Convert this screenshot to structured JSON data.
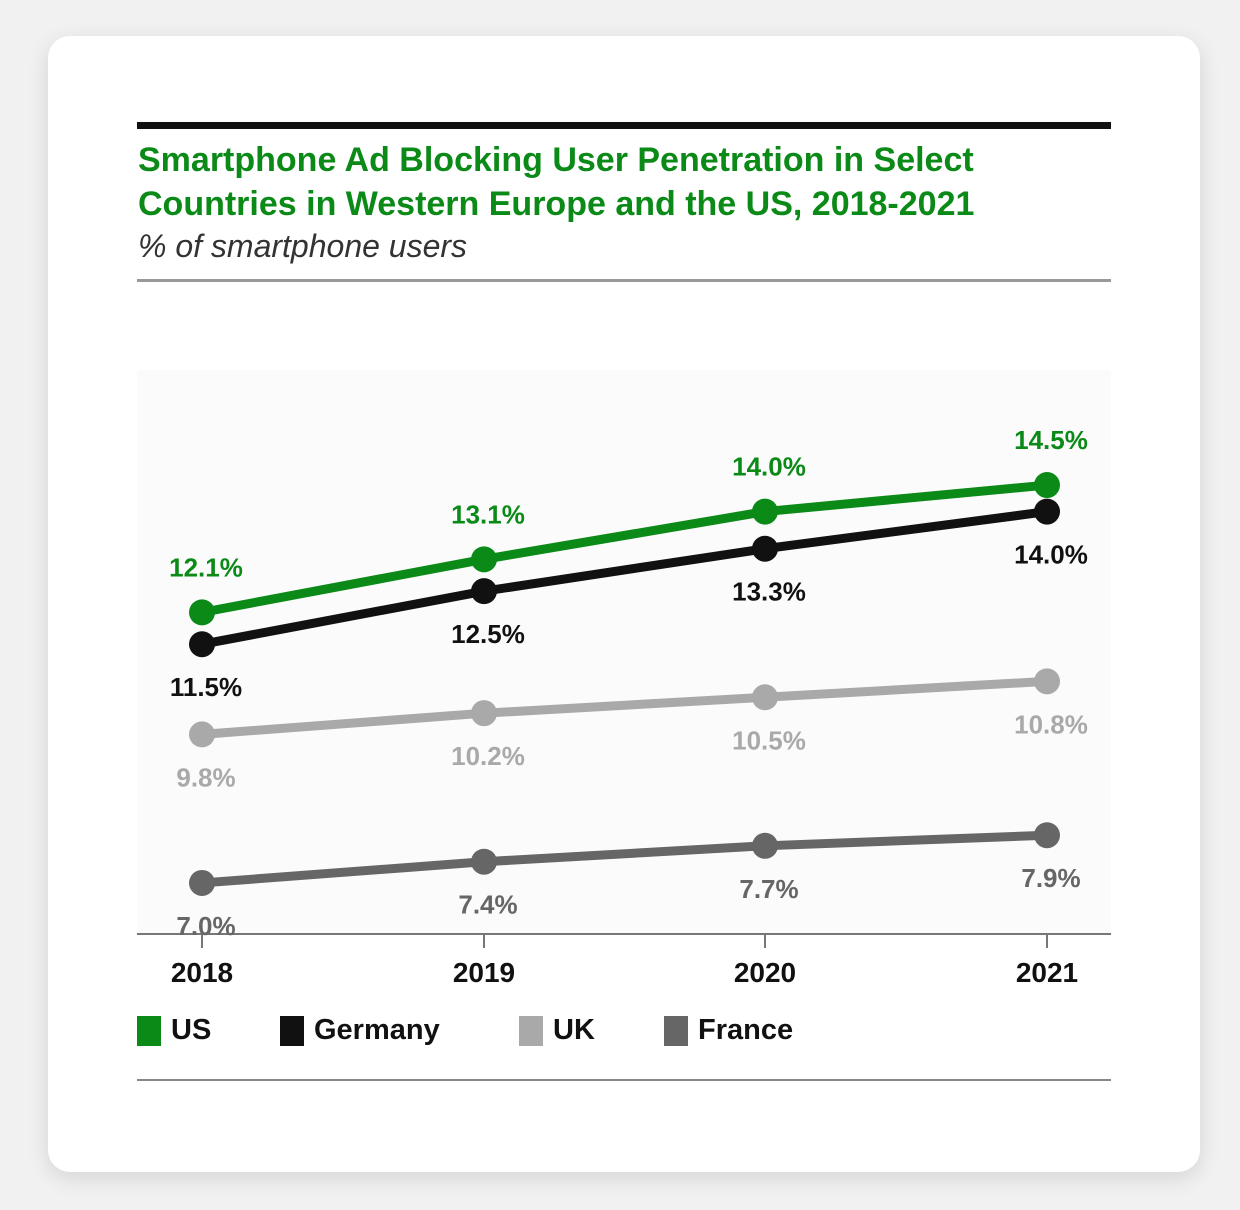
{
  "chart_data": {
    "type": "line",
    "title": "Smartphone Ad Blocking User Penetration in Select Countries in Western Europe and the US, 2018-2021",
    "subtitle": "% of smartphone users",
    "x": [
      "2018",
      "2019",
      "2020",
      "2021"
    ],
    "ylim": [
      6,
      15.5
    ],
    "grid": false,
    "legend_position": "bottom-left",
    "series": [
      {
        "name": "US",
        "color": "#0b8a18",
        "values": [
          12.1,
          13.1,
          14.0,
          14.5
        ],
        "labels": [
          "12.1%",
          "13.1%",
          "14.0%",
          "14.5%"
        ],
        "label_side": "above"
      },
      {
        "name": "Germany",
        "color": "#111111",
        "values": [
          11.5,
          12.5,
          13.3,
          14.0
        ],
        "labels": [
          "11.5%",
          "12.5%",
          "13.3%",
          "14.0%"
        ],
        "label_side": "below"
      },
      {
        "name": "UK",
        "color": "#a9a9a9",
        "values": [
          9.8,
          10.2,
          10.5,
          10.8
        ],
        "labels": [
          "9.8%",
          "10.2%",
          "10.5%",
          "10.8%"
        ],
        "label_side": "below"
      },
      {
        "name": "France",
        "color": "#666666",
        "values": [
          7.0,
          7.4,
          7.7,
          7.9
        ],
        "labels": [
          "7.0%",
          "7.4%",
          "7.7%",
          "7.9%"
        ],
        "label_side": "below"
      }
    ]
  }
}
